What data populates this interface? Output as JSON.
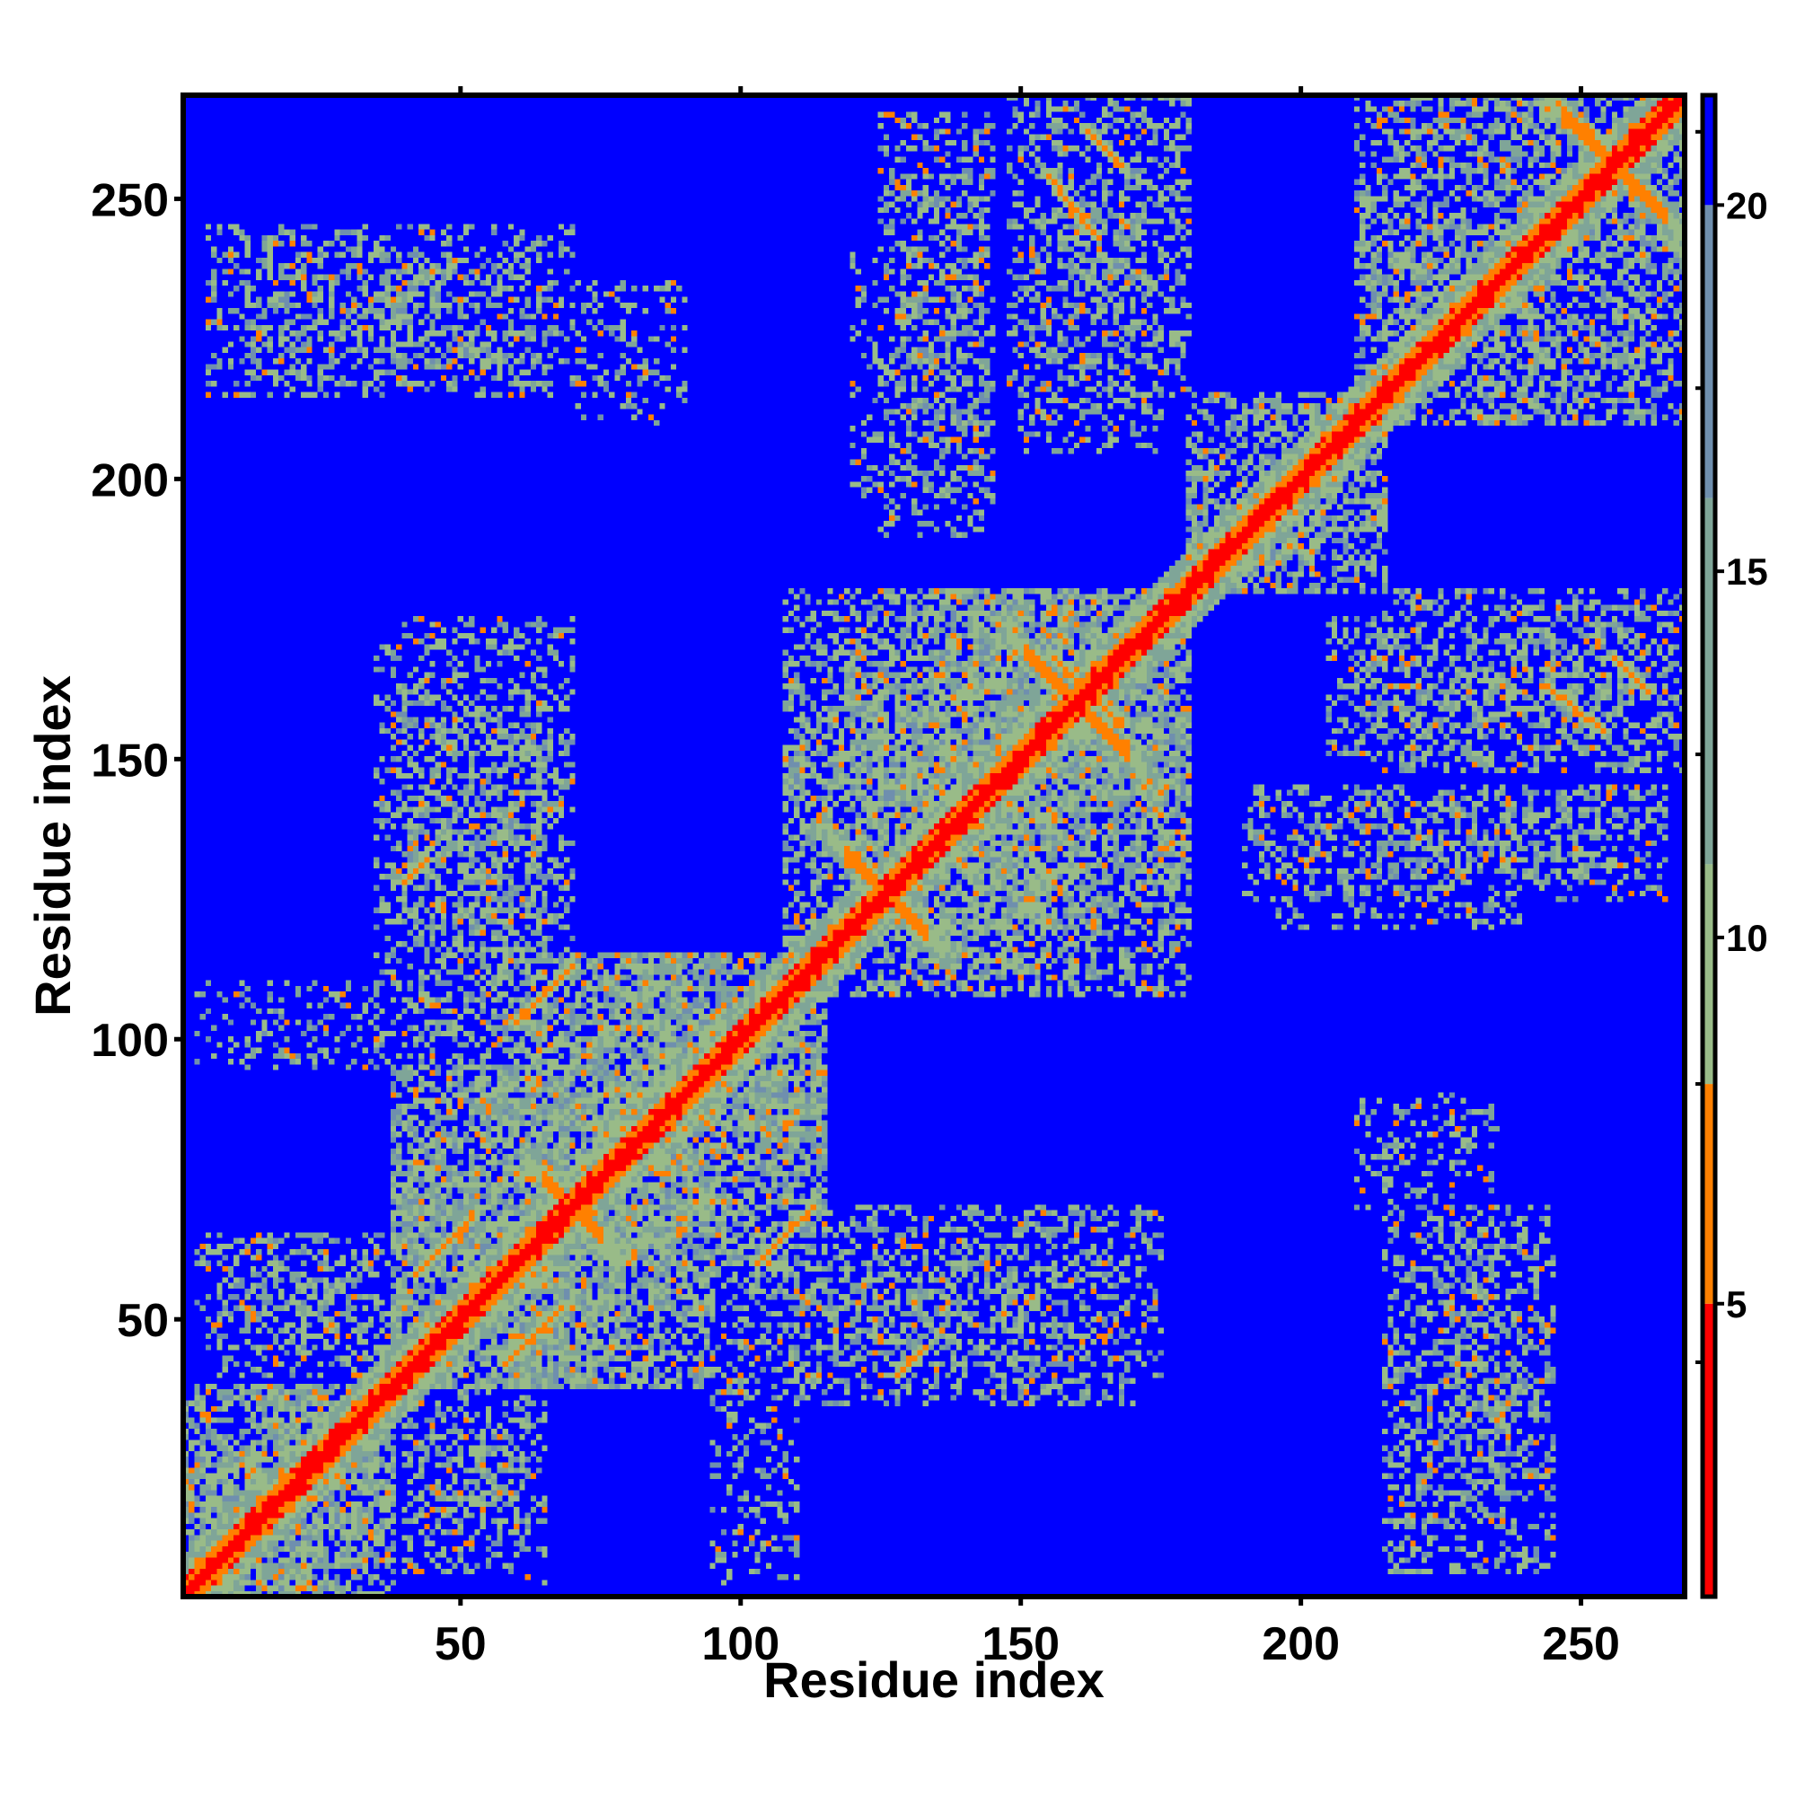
{
  "chart_data": {
    "type": "heatmap",
    "title": "",
    "xlabel": "Residue index",
    "ylabel": "Residue index",
    "n_residues": 268,
    "xlim": [
      1,
      268
    ],
    "ylim": [
      1,
      268
    ],
    "x_ticks": [
      50,
      100,
      150,
      200,
      250
    ],
    "y_ticks": [
      50,
      100,
      150,
      200,
      250
    ],
    "colorbar": {
      "range": [
        1,
        21.5
      ],
      "ticks": [
        5,
        10,
        15,
        20
      ],
      "colors": [
        {
          "from": 1,
          "to": 5,
          "color": "#ff0000"
        },
        {
          "from": 5,
          "to": 8,
          "color": "#ff8000"
        },
        {
          "from": 8,
          "to": 11,
          "color": "#99bb88"
        },
        {
          "from": 11,
          "to": 16,
          "color": "#7fa598"
        },
        {
          "from": 16,
          "to": 20,
          "color": "#6f8fae"
        },
        {
          "from": 20,
          "to": 21.5,
          "color": "#0000ff"
        }
      ]
    },
    "background_value": 21,
    "background_color": "#0000ff",
    "diagonal_color": "#ff0000",
    "contact_color": "#99bb88",
    "contact_core_color": "#ff8000",
    "regions": [
      {
        "x": [
          1,
          38
        ],
        "y": [
          1,
          38
        ],
        "level": "dense"
      },
      {
        "x": [
          38,
          95
        ],
        "y": [
          38,
          95
        ],
        "level": "dense"
      },
      {
        "x": [
          60,
          115
        ],
        "y": [
          60,
          115
        ],
        "level": "dense"
      },
      {
        "x": [
          108,
          180
        ],
        "y": [
          108,
          180
        ],
        "level": "medium"
      },
      {
        "x": [
          180,
          215
        ],
        "y": [
          180,
          215
        ],
        "level": "medium"
      },
      {
        "x": [
          210,
          268
        ],
        "y": [
          210,
          268
        ],
        "level": "medium"
      },
      {
        "x": [
          5,
          70
        ],
        "y": [
          215,
          245
        ],
        "level": "medium"
      },
      {
        "x": [
          70,
          90
        ],
        "y": [
          210,
          235
        ],
        "level": "sparse"
      },
      {
        "x": [
          125,
          145
        ],
        "y": [
          190,
          265
        ],
        "level": "medium"
      },
      {
        "x": [
          150,
          175
        ],
        "y": [
          205,
          268
        ],
        "level": "medium"
      },
      {
        "x": [
          215,
          268
        ],
        "y": [
          148,
          180
        ],
        "level": "medium"
      },
      {
        "x": [
          195,
          240
        ],
        "y": [
          120,
          140
        ],
        "level": "sparse"
      },
      {
        "x": [
          220,
          245
        ],
        "y": [
          15,
          60
        ],
        "level": "medium"
      },
      {
        "x": [
          215,
          230
        ],
        "y": [
          70,
          85
        ],
        "level": "sparse"
      },
      {
        "x": [
          3,
          40
        ],
        "y": [
          95,
          110
        ],
        "level": "sparse"
      },
      {
        "x": [
          40,
          70
        ],
        "y": [
          95,
          175
        ],
        "level": "medium"
      },
      {
        "x": [
          3,
          40
        ],
        "y": [
          50,
          65
        ],
        "level": "sparse"
      },
      {
        "x": [
          95,
          170
        ],
        "y": [
          35,
          70
        ],
        "level": "medium"
      },
      {
        "x": [
          95,
          110
        ],
        "y": [
          5,
          35
        ],
        "level": "sparse"
      },
      {
        "x": [
          40,
          65
        ],
        "y": [
          5,
          40
        ],
        "level": "medium"
      },
      {
        "x": [
          120,
          175
        ],
        "y": [
          120,
          180
        ],
        "level": "dense"
      }
    ],
    "cross_features": [
      {
        "center": 160,
        "half_length": 12
      },
      {
        "center": 256,
        "half_length": 12
      },
      {
        "center": 126,
        "half_length": 10
      },
      {
        "center": 70,
        "half_length": 8
      }
    ],
    "antiparallel_contacts": [
      {
        "x0": 58,
        "y0": 42,
        "x1": 68,
        "y1": 52
      },
      {
        "x0": 128,
        "y0": 40,
        "x1": 132,
        "y1": 44
      },
      {
        "x0": 103,
        "y0": 60,
        "x1": 113,
        "y1": 70
      },
      {
        "x0": 156,
        "y0": 168,
        "x1": 166,
        "y1": 158
      },
      {
        "x0": 162,
        "y0": 262,
        "x1": 168,
        "y1": 256
      },
      {
        "x0": 244,
        "y0": 163,
        "x1": 254,
        "y1": 155
      }
    ]
  }
}
